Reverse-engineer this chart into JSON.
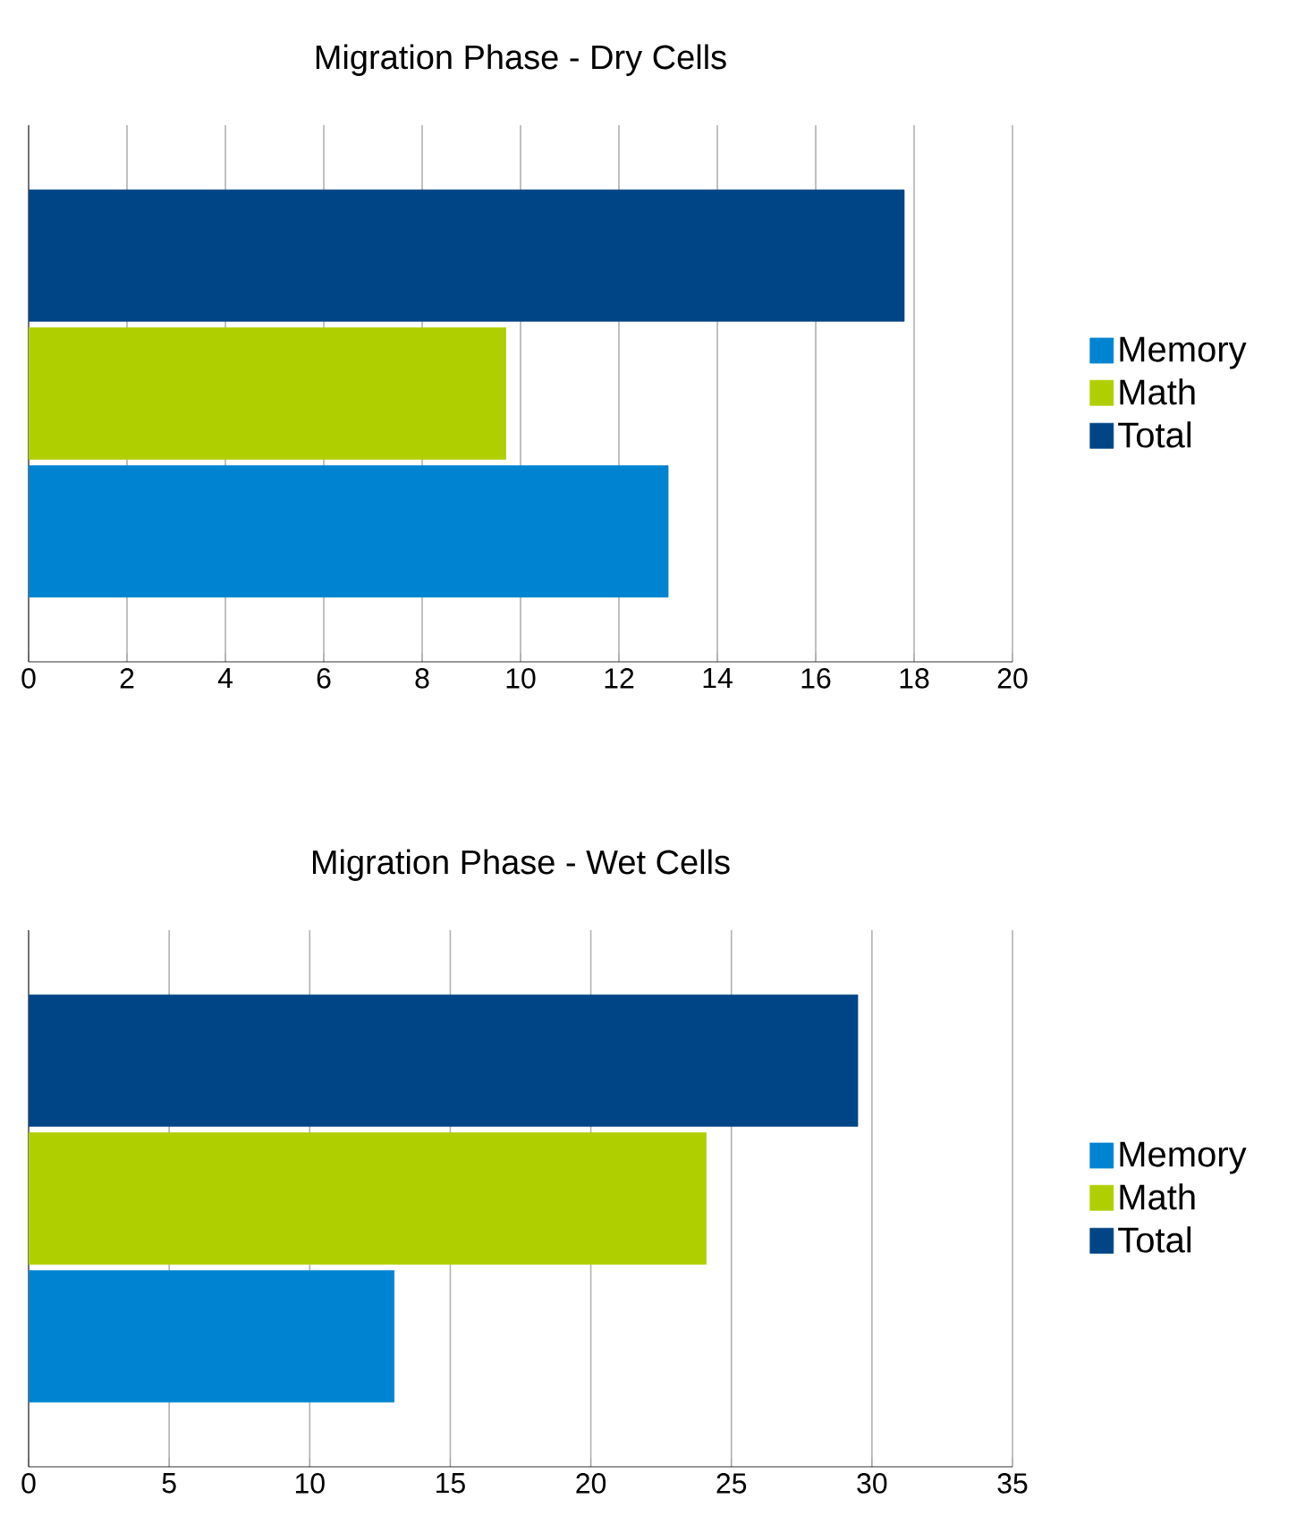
{
  "chart_data": [
    {
      "type": "bar",
      "orientation": "horizontal",
      "title": "Migration Phase - Dry Cells",
      "categories": [
        null
      ],
      "series": [
        {
          "name": "Memory",
          "color": "#0084d1",
          "values": [
            13.0
          ]
        },
        {
          "name": "Math",
          "color": "#b0cf00",
          "values": [
            9.7
          ]
        },
        {
          "name": "Total",
          "color": "#004586",
          "values": [
            17.8
          ]
        }
      ],
      "xlim": [
        0,
        20
      ],
      "xticks": [
        0,
        2,
        4,
        6,
        8,
        10,
        12,
        14,
        16,
        18,
        20
      ],
      "grid": "x",
      "legend": "right"
    },
    {
      "type": "bar",
      "orientation": "horizontal",
      "title": "Migration Phase - Wet Cells",
      "categories": [
        null
      ],
      "series": [
        {
          "name": "Memory",
          "color": "#0084d1",
          "values": [
            13.0
          ]
        },
        {
          "name": "Math",
          "color": "#b0cf00",
          "values": [
            24.1
          ]
        },
        {
          "name": "Total",
          "color": "#004586",
          "values": [
            29.5
          ]
        }
      ],
      "xlim": [
        0,
        35
      ],
      "xticks": [
        0,
        5,
        10,
        15,
        20,
        25,
        30,
        35
      ],
      "grid": "x",
      "legend": "right"
    }
  ]
}
